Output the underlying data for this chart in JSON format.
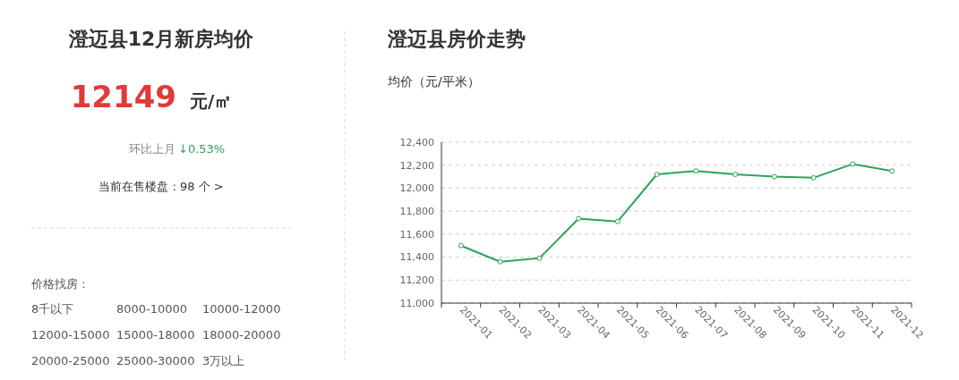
{
  "chart_data": [
    {
      "type": "other",
      "title": "澄迈县12月新房均价",
      "annotations": [
        "12149",
        "元/㎡",
        "环比上月",
        "↓0.53%",
        "当前在售楼盘 : 98 个 >",
        "价格找房 :",
        "8千以下",
        "8000-10000",
        "10000-12000",
        "12000-15000",
        "15000-18000",
        "18000-20000",
        "20000-25000",
        "25000-30000",
        "3万以上"
      ]
    },
    {
      "type": "line",
      "title": "澄迈县房价走势",
      "ylabel": "均价（元/平米）",
      "categories": [
        "2021-01",
        "2021-02",
        "2021-03",
        "2021-04",
        "2021-05",
        "2021-06",
        "2021-07",
        "2021-08",
        "2021-09",
        "2021-10",
        "2021-11",
        "2021-12"
      ],
      "series": [
        {
          "color": "#2ca35a",
          "values": [
            11500,
            11360,
            11390,
            11735,
            11710,
            12120,
            12150,
            12120,
            12100,
            12090,
            12210,
            12149
          ]
        }
      ],
      "ylim": [
        11000,
        12400
      ],
      "yticks": [
        {
          "value": 11000,
          "label": "11,000"
        },
        {
          "value": 11200,
          "label": "11,200"
        },
        {
          "value": 11400,
          "label": "11,400"
        },
        {
          "value": 11600,
          "label": "11,600"
        },
        {
          "value": 11800,
          "label": "11,800"
        },
        {
          "value": 12000,
          "label": "12,000"
        },
        {
          "value": 12200,
          "label": "12,200"
        },
        {
          "value": 12400,
          "label": "12,400"
        }
      ],
      "grid": "y",
      "marker": "circle",
      "line_style": "solid"
    }
  ]
}
